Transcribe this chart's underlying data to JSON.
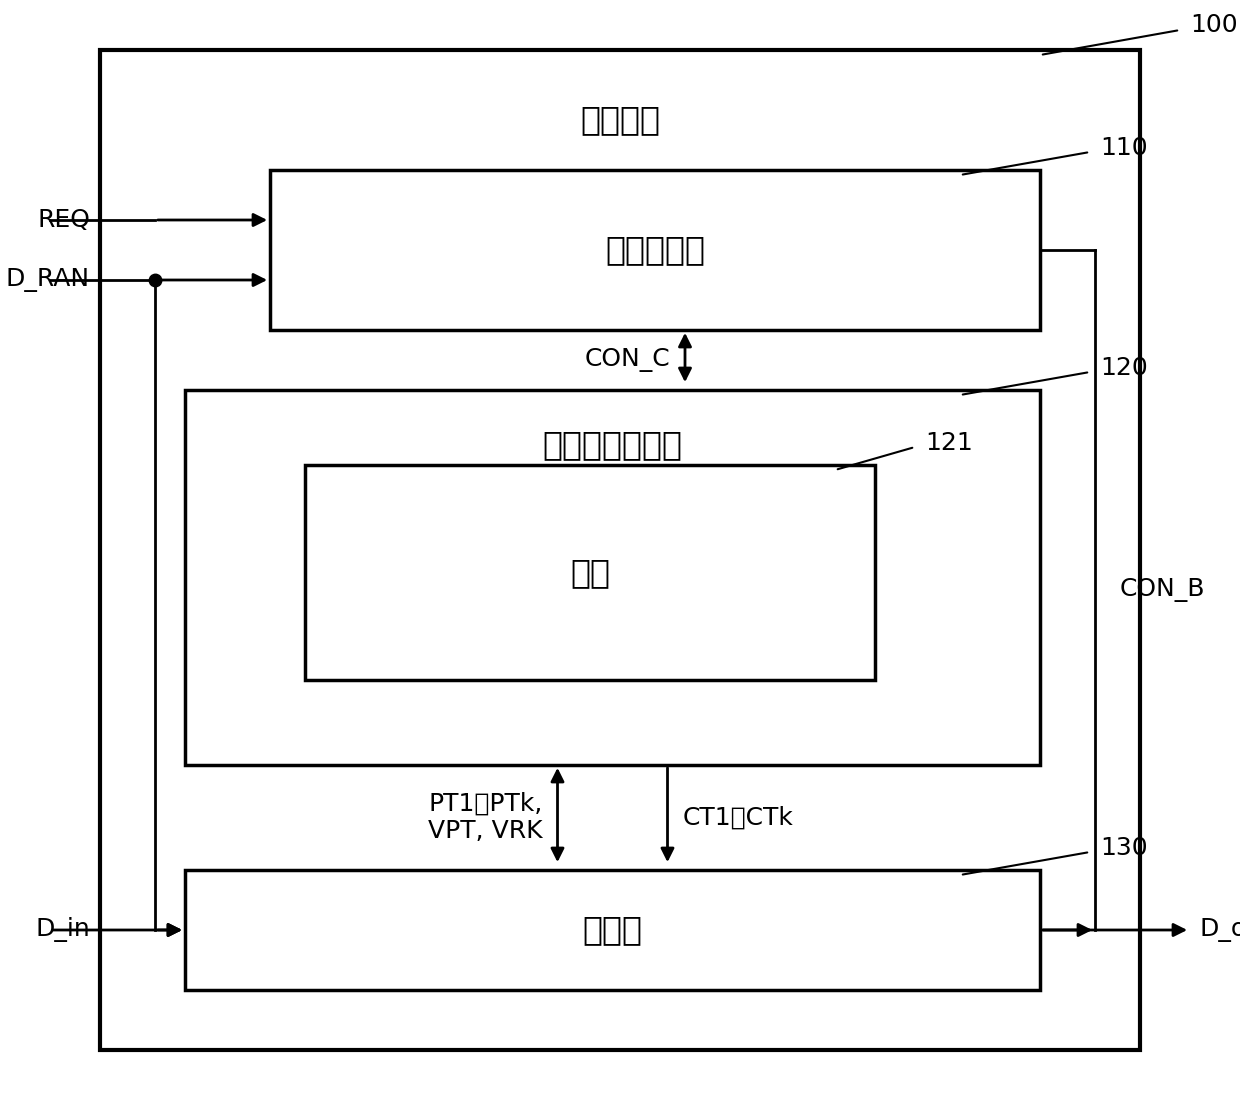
{
  "title": "加密电路",
  "label_100": "100",
  "label_110": "110",
  "label_120": "120",
  "label_121": "121",
  "label_130": "130",
  "text_controller": "加密控制器",
  "text_pipeline": "流水线型加密核",
  "text_round": "轮核",
  "text_buffer": "缓冲器",
  "text_req": "REQ",
  "text_dran": "D_RAN",
  "text_con_c": "CON_C",
  "text_con_b": "CON_B",
  "text_pt": "PT1～PTk,\nVPT, VRK",
  "text_ct": "CT1～CTk",
  "text_din": "D_in",
  "text_dout": "D_out",
  "bg_color": "#ffffff",
  "box_color": "#000000",
  "box_fill": "#ffffff",
  "line_color": "#000000",
  "font_size_title": 24,
  "font_size_number": 18,
  "font_size_signal": 18
}
